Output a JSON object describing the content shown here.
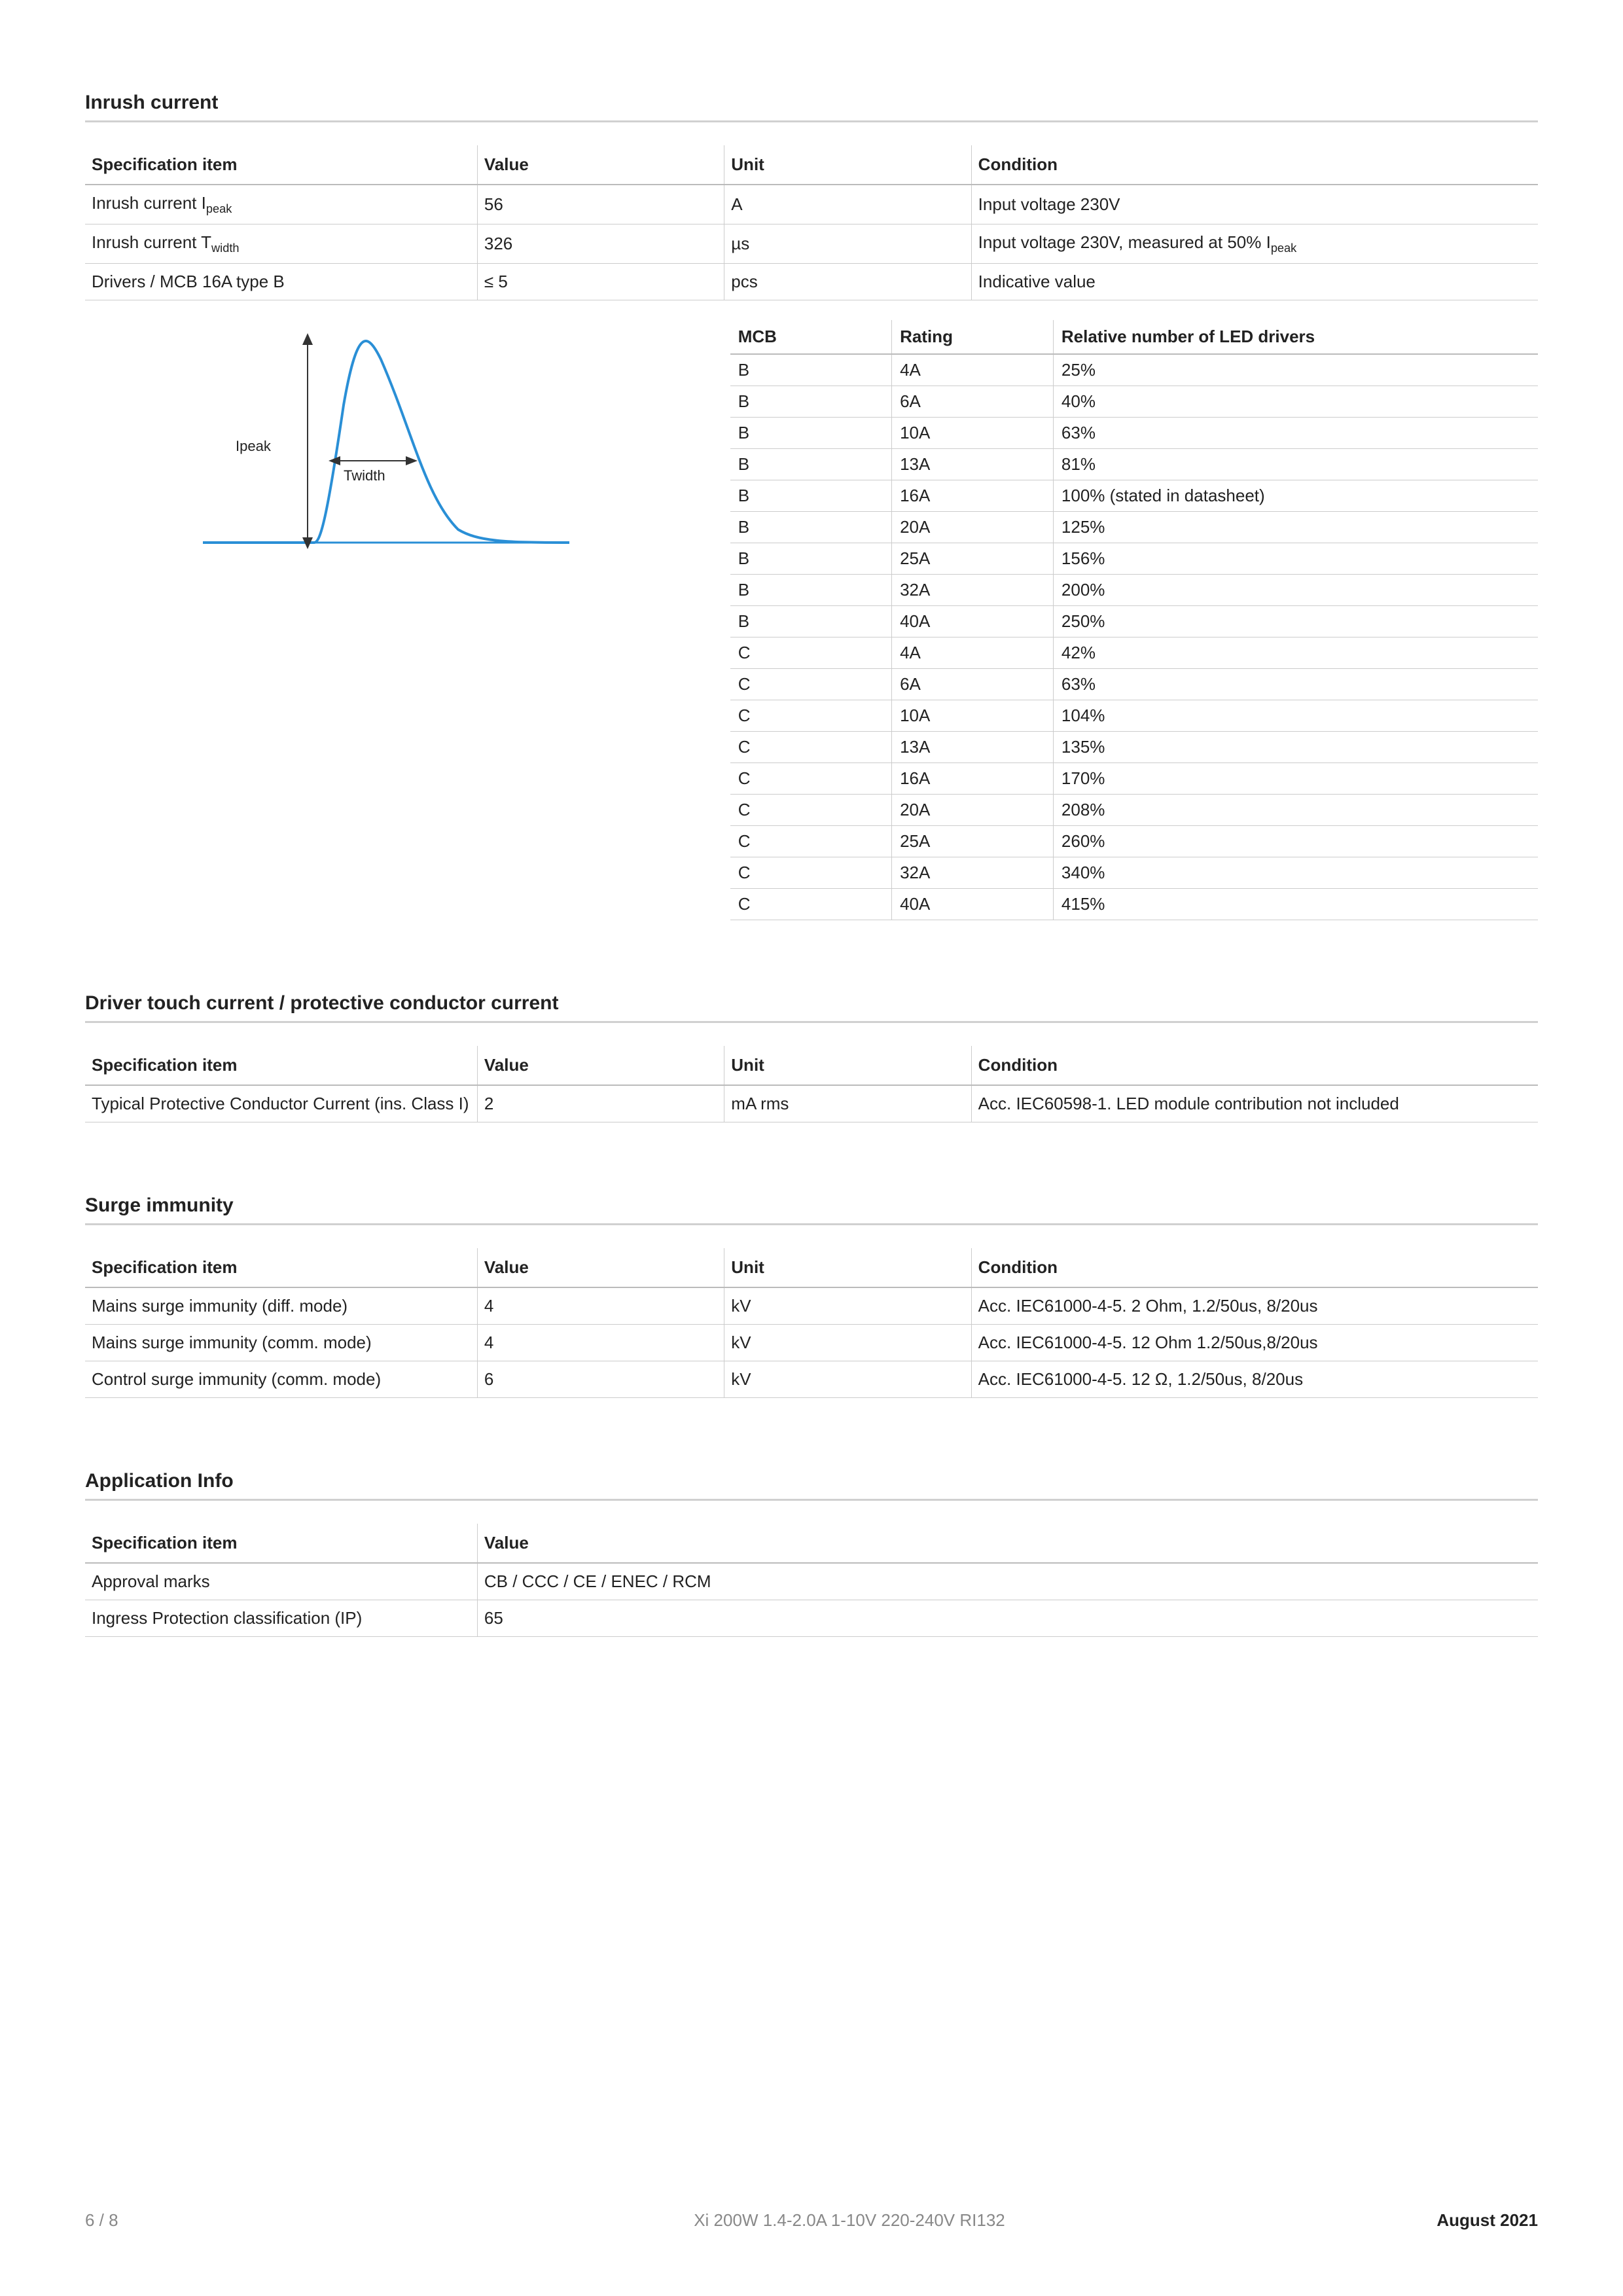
{
  "sections": {
    "inrush": {
      "title": "Inrush current",
      "headers": [
        "Specification item",
        "Value",
        "Unit",
        "Condition"
      ],
      "rows": [
        {
          "spec_html": "Inrush current I<sub>peak</sub>",
          "value": "56",
          "unit": "A",
          "cond": "Input voltage 230V"
        },
        {
          "spec_html": "Inrush current T<sub>width</sub>",
          "value": "326",
          "unit": "µs",
          "cond_html": "Input voltage 230V, measured at 50% I<sub>peak</sub>"
        },
        {
          "spec": "Drivers / MCB 16A type B",
          "value": "≤ 5",
          "unit": "pcs",
          "cond": "Indicative value"
        }
      ],
      "graph": {
        "label_ipeak": "Ipeak",
        "label_twidth": "Twidth",
        "curve_color": "#2a8fd6",
        "axis_color": "#555",
        "arrow_color": "#333"
      },
      "mcb_headers": [
        "MCB",
        "Rating",
        "Relative number of LED drivers"
      ],
      "mcb_rows": [
        [
          "B",
          "4A",
          "25%"
        ],
        [
          "B",
          "6A",
          "40%"
        ],
        [
          "B",
          "10A",
          "63%"
        ],
        [
          "B",
          "13A",
          "81%"
        ],
        [
          "B",
          "16A",
          "100% (stated in datasheet)"
        ],
        [
          "B",
          "20A",
          "125%"
        ],
        [
          "B",
          "25A",
          "156%"
        ],
        [
          "B",
          "32A",
          "200%"
        ],
        [
          "B",
          "40A",
          "250%"
        ],
        [
          "C",
          "4A",
          "42%"
        ],
        [
          "C",
          "6A",
          "63%"
        ],
        [
          "C",
          "10A",
          "104%"
        ],
        [
          "C",
          "13A",
          "135%"
        ],
        [
          "C",
          "16A",
          "170%"
        ],
        [
          "C",
          "20A",
          "208%"
        ],
        [
          "C",
          "25A",
          "260%"
        ],
        [
          "C",
          "32A",
          "340%"
        ],
        [
          "C",
          "40A",
          "415%"
        ]
      ]
    },
    "touch": {
      "title": "Driver touch current / protective conductor current",
      "headers": [
        "Specification item",
        "Value",
        "Unit",
        "Condition"
      ],
      "rows": [
        {
          "spec": "Typical Protective Conductor Current (ins. Class I)",
          "value": "2",
          "unit": "mA rms",
          "cond": "Acc. IEC60598-1. LED module contribution not included"
        }
      ]
    },
    "surge": {
      "title": "Surge immunity",
      "headers": [
        "Specification item",
        "Value",
        "Unit",
        "Condition"
      ],
      "rows": [
        {
          "spec": "Mains surge immunity (diff. mode)",
          "value": "4",
          "unit": "kV",
          "cond": "Acc. IEC61000-4-5. 2 Ohm, 1.2/50us, 8/20us"
        },
        {
          "spec": "Mains surge immunity (comm. mode)",
          "value": "4",
          "unit": "kV",
          "cond": "Acc. IEC61000-4-5. 12 Ohm 1.2/50us,8/20us"
        },
        {
          "spec": "Control surge immunity (comm. mode)",
          "value": "6",
          "unit": "kV",
          "cond": "Acc. IEC61000-4-5. 12 Ω, 1.2/50us, 8/20us"
        }
      ]
    },
    "app": {
      "title": "Application Info",
      "headers": [
        "Specification item",
        "Value"
      ],
      "rows": [
        {
          "spec": "Approval marks",
          "value": "CB / CCC / CE / ENEC / RCM"
        },
        {
          "spec": "Ingress Protection classification (IP)",
          "value": "65"
        }
      ]
    }
  },
  "footer": {
    "page": "6 / 8",
    "product": "Xi 200W 1.4-2.0A 1-10V 220-240V RI132",
    "date": "August 2021"
  }
}
